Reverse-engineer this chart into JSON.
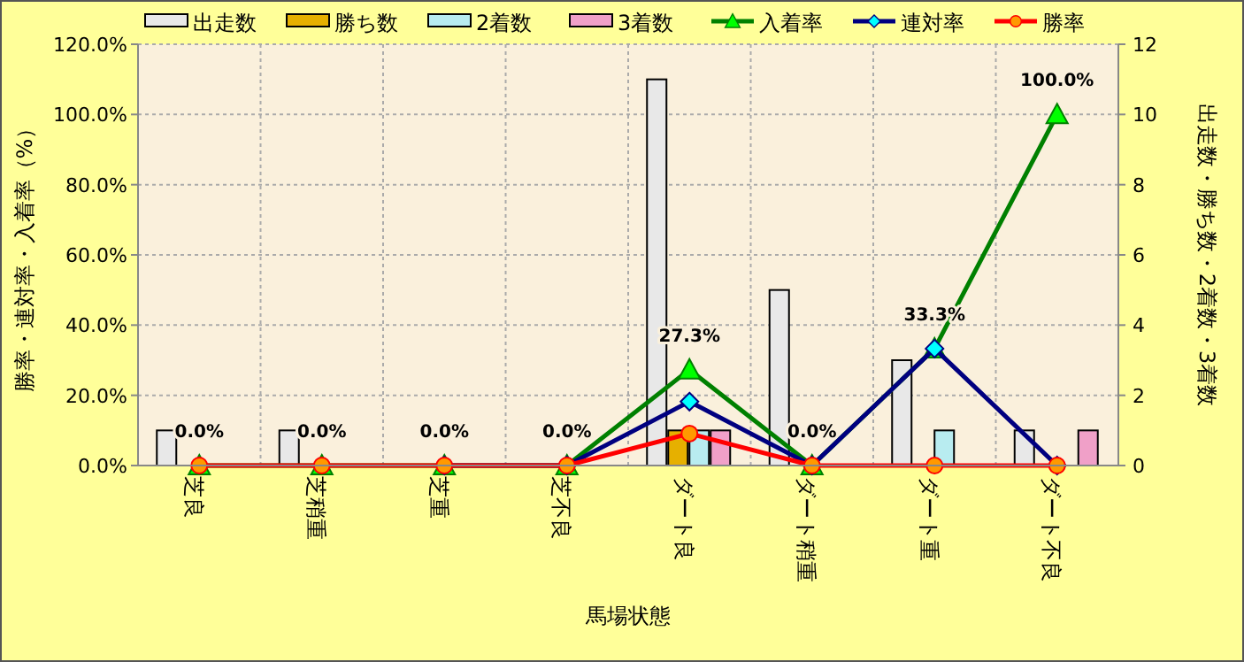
{
  "chart_data": {
    "type": "bar",
    "xlabel": "馬場状態",
    "ylabel": "勝率・連対率・入着率（%）",
    "y2label": "出走数・勝ち数・2着数・3着数",
    "categories": [
      "芝良",
      "芝稍重",
      "芝重",
      "芝不良",
      "ダート良",
      "ダート稍重",
      "ダート重",
      "ダート不良"
    ],
    "series": [
      {
        "name": "出走数",
        "axis": "y2",
        "color": "#e8e8e8",
        "values": [
          1,
          1,
          0,
          0,
          11,
          5,
          3,
          1
        ]
      },
      {
        "name": "勝ち数",
        "axis": "y2",
        "color": "#e6b000",
        "values": [
          0,
          0,
          0,
          0,
          1,
          0,
          0,
          0
        ]
      },
      {
        "name": "2着数",
        "axis": "y2",
        "color": "#b8ecf0",
        "values": [
          0,
          0,
          0,
          0,
          1,
          0,
          1,
          0
        ]
      },
      {
        "name": "3着数",
        "axis": "y2",
        "color": "#f0a0c8",
        "values": [
          0,
          0,
          0,
          0,
          1,
          0,
          0,
          1
        ]
      },
      {
        "name": "入着率",
        "type": "line",
        "color": "#008000",
        "marker": "triangle",
        "values": [
          0,
          0,
          0,
          0,
          27.3,
          0,
          33.3,
          100
        ],
        "value_labels": [
          "0.0%",
          "0.0%",
          "0.0%",
          "0.0%",
          "27.3%",
          "0.0%",
          "33.3%",
          "100.0%"
        ]
      },
      {
        "name": "連対率",
        "type": "line",
        "color": "#000080",
        "marker": "diamond",
        "values": [
          null,
          null,
          0,
          0,
          18.2,
          0,
          33.3,
          0
        ]
      },
      {
        "name": "勝率",
        "type": "line",
        "color": "#ff0000",
        "marker": "circle",
        "values": [
          0,
          0,
          0,
          0,
          9.1,
          0,
          0,
          0
        ]
      }
    ],
    "ylim": [
      0,
      120
    ],
    "yticks": [
      {
        "value": 0,
        "label": "0.0%"
      },
      {
        "value": 20,
        "label": "20.0%"
      },
      {
        "value": 40,
        "label": "40.0%"
      },
      {
        "value": 60,
        "label": "60.0%"
      },
      {
        "value": 80,
        "label": "80.0%"
      },
      {
        "value": 100,
        "label": "100.0%"
      },
      {
        "value": 120,
        "label": "120.0%"
      }
    ],
    "y2lim": [
      0,
      12
    ],
    "y2ticks": [
      0,
      2,
      4,
      6,
      8,
      10,
      12
    ],
    "grid": true,
    "legend": "top"
  }
}
